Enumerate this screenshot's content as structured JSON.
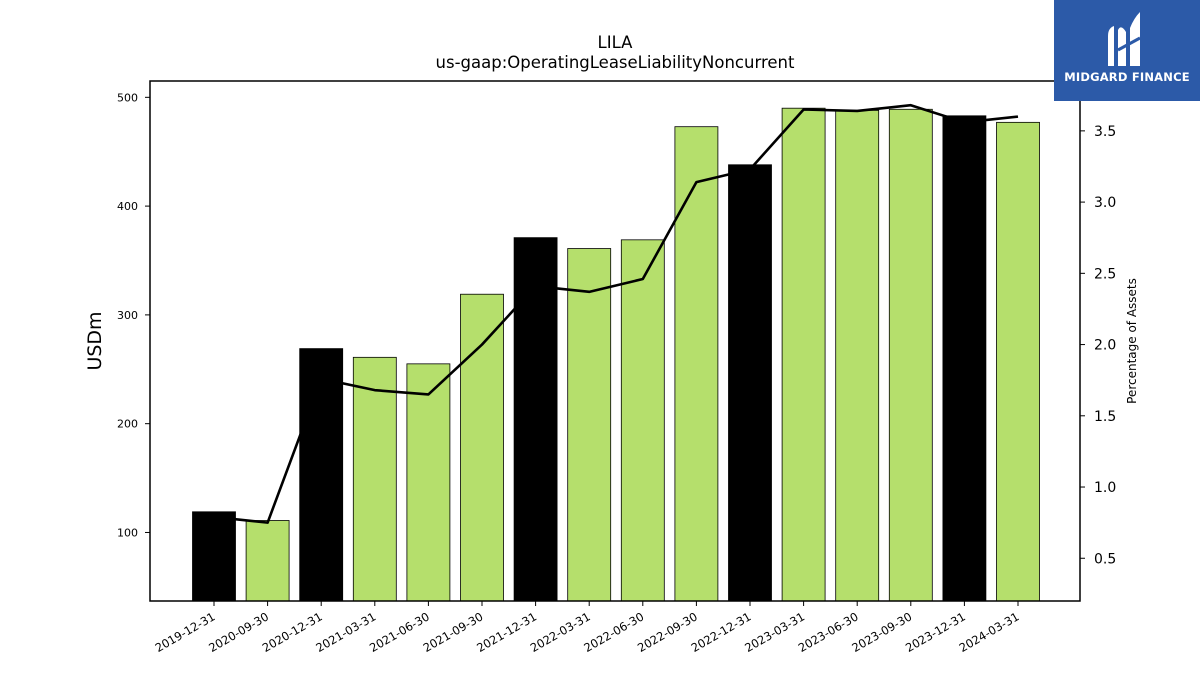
{
  "chart_data": {
    "type": "bar",
    "title": "LILA",
    "subtitle": "us-gaap:OperatingLeaseLiabilityNoncurrent",
    "ylabel": "USDm",
    "y2label": "Percentage of Assets",
    "ylim": [
      37,
      515
    ],
    "y2lim": [
      0.2,
      3.85
    ],
    "yticks": [
      100,
      200,
      300,
      400,
      500
    ],
    "y2ticks": [
      "0.5",
      "1.0",
      "1.5",
      "2.0",
      "2.5",
      "3.0",
      "3.5"
    ],
    "categories": [
      "2019-12-31",
      "2020-09-30",
      "2020-12-31",
      "2021-03-31",
      "2021-06-30",
      "2021-09-30",
      "2021-12-31",
      "2022-03-31",
      "2022-06-30",
      "2022-09-30",
      "2022-12-31",
      "2023-03-31",
      "2023-06-30",
      "2023-09-30",
      "2023-12-31",
      "2024-03-31"
    ],
    "series": [
      {
        "type": "bar",
        "axis": "left",
        "values": [
          119,
          111,
          269,
          261,
          255,
          319,
          371,
          361,
          369,
          473,
          438,
          490,
          488,
          489,
          483,
          477
        ],
        "bar_colors": [
          "#000000",
          "#b5df6c",
          "#000000",
          "#b5df6c",
          "#b5df6c",
          "#b5df6c",
          "#000000",
          "#b5df6c",
          "#b5df6c",
          "#b5df6c",
          "#000000",
          "#b5df6c",
          "#b5df6c",
          "#b5df6c",
          "#000000",
          "#b5df6c"
        ]
      },
      {
        "type": "line",
        "axis": "right",
        "color": "#000000",
        "values": [
          0.79,
          0.75,
          1.76,
          1.68,
          1.65,
          2.0,
          2.41,
          2.37,
          2.46,
          3.14,
          3.23,
          3.65,
          3.64,
          3.68,
          3.56,
          3.6
        ]
      }
    ],
    "grid": false,
    "legend": "none"
  },
  "logo": {
    "name": "MIDGARD FINANCE",
    "color": "#2c5aa8"
  }
}
